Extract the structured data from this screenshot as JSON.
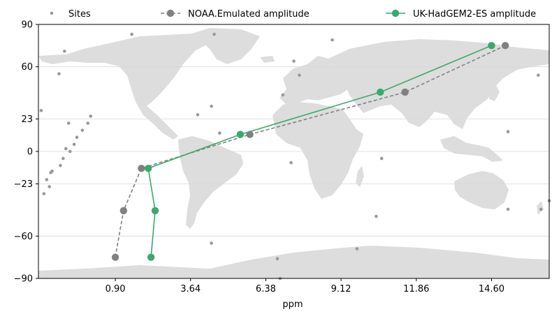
{
  "chart_data": {
    "type": "line",
    "title": "",
    "xlabel": "ppm",
    "ylabel": "",
    "xlim": [
      -1.9,
      16.7
    ],
    "ylim": [
      -90,
      90
    ],
    "xticks": [
      0.9,
      3.64,
      6.38,
      9.12,
      11.86,
      14.6
    ],
    "xtick_labels": [
      "0.90",
      "3.64",
      "6.38",
      "9.12",
      "11.86",
      "14.60"
    ],
    "yticks": [
      -90,
      -60,
      -23,
      0,
      23,
      60,
      90
    ],
    "ytick_labels": [
      "−90",
      "−60",
      "−23",
      "0",
      "23",
      "60",
      "90"
    ],
    "grid": "horizontal",
    "background": "world-map",
    "legend_placement": "top",
    "sites": {
      "name": "Sites",
      "color": "#999999",
      "points": [
        [
          -1.8,
          29
        ],
        [
          -1.7,
          -30
        ],
        [
          -1.6,
          -20
        ],
        [
          -1.5,
          -25
        ],
        [
          -1.45,
          -15
        ],
        [
          -1.4,
          -14
        ],
        [
          -1.1,
          -10
        ],
        [
          -1.0,
          -5
        ],
        [
          -0.9,
          2
        ],
        [
          -0.75,
          0
        ],
        [
          -0.8,
          20
        ],
        [
          -0.6,
          5
        ],
        [
          -0.5,
          10
        ],
        [
          -0.3,
          15
        ],
        [
          -0.1,
          20
        ],
        [
          0.0,
          25
        ],
        [
          -0.95,
          71
        ],
        [
          -1.15,
          55
        ],
        [
          1.5,
          83
        ],
        [
          3.9,
          26
        ],
        [
          4.4,
          32
        ],
        [
          4.7,
          13
        ],
        [
          4.5,
          83
        ],
        [
          7.0,
          40
        ],
        [
          7.4,
          64
        ],
        [
          7.6,
          54
        ],
        [
          7.3,
          -8
        ],
        [
          8.8,
          79
        ],
        [
          10.6,
          -5
        ],
        [
          10.4,
          -46
        ],
        [
          9.7,
          -69
        ],
        [
          6.8,
          -76
        ],
        [
          6.9,
          -90
        ],
        [
          4.4,
          -65
        ],
        [
          15.2,
          -41
        ],
        [
          16.3,
          54
        ],
        [
          16.4,
          -41
        ],
        [
          16.7,
          -35
        ],
        [
          15.2,
          14
        ]
      ]
    },
    "series": [
      {
        "name": "NOAA.Emulated amplitude",
        "color": "#808080",
        "dash": true,
        "x": [
          0.9,
          1.2,
          1.85,
          5.8,
          11.45,
          15.1
        ],
        "y": [
          -75,
          -42,
          -12,
          12,
          42,
          75
        ]
      },
      {
        "name": "UK-HadGEM2-ES amplitude",
        "color": "#3aaa6a",
        "dash": false,
        "x": [
          2.2,
          2.35,
          2.1,
          5.45,
          10.55,
          14.6
        ],
        "y": [
          -75,
          -42,
          -12,
          12,
          42,
          75
        ]
      }
    ]
  }
}
